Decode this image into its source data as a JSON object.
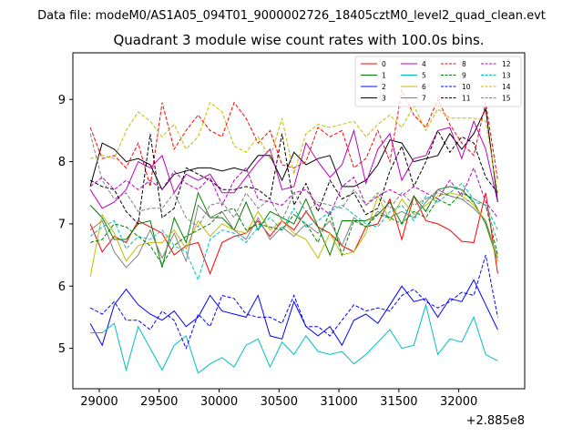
{
  "figure": {
    "suptitle": "Data file: modeM0/AS1A05_094T01_9000002726_18405cztM0_level2_quad_clean.evt"
  },
  "chart_data": {
    "type": "line",
    "title": "Quadrant 3 module wise count rates with 100.0s bins.",
    "xlabel": "",
    "ylabel": "",
    "x_offset_label": "+2.885e8",
    "xlim": [
      28780,
      32550
    ],
    "ylim": [
      4.35,
      9.75
    ],
    "xticks": [
      29000,
      29500,
      30000,
      30500,
      31000,
      31500,
      32000
    ],
    "yticks": [
      5,
      6,
      7,
      8,
      9
    ],
    "grid": false,
    "legend_position": "top-right",
    "x": [
      28925,
      29025,
      29125,
      29225,
      29325,
      29425,
      29525,
      29625,
      29725,
      29825,
      29925,
      30025,
      30125,
      30225,
      30325,
      30425,
      30525,
      30625,
      30725,
      30825,
      30925,
      31025,
      31125,
      31225,
      31325,
      31425,
      31525,
      31625,
      31725,
      31825,
      31925,
      32025,
      32125,
      32225,
      32325
    ],
    "series": [
      {
        "name": "0",
        "color": "#ff0000",
        "dash": "solid",
        "values": [
          7.0,
          6.55,
          6.8,
          6.7,
          7.05,
          6.95,
          6.85,
          6.5,
          6.65,
          6.7,
          6.2,
          6.7,
          6.8,
          6.85,
          7.05,
          6.8,
          7.05,
          6.9,
          7.2,
          6.95,
          6.85,
          6.65,
          6.55,
          6.95,
          7.0,
          7.4,
          6.75,
          7.45,
          7.05,
          7.0,
          6.9,
          6.72,
          6.7,
          7.5,
          6.2
        ]
      },
      {
        "name": "1",
        "color": "#008000",
        "dash": "solid",
        "values": [
          7.3,
          7.1,
          6.75,
          6.75,
          7.0,
          7.05,
          6.3,
          7.1,
          6.7,
          7.5,
          7.1,
          7.1,
          6.9,
          7.35,
          6.9,
          7.2,
          7.1,
          7.0,
          7.4,
          6.95,
          6.5,
          7.05,
          7.05,
          7.05,
          7.15,
          7.35,
          7.0,
          7.45,
          7.2,
          7.55,
          7.6,
          7.55,
          7.35,
          7.0,
          6.4
        ]
      },
      {
        "name": "2",
        "color": "#0000ff",
        "dash": "solid",
        "values": [
          5.4,
          5.05,
          5.7,
          5.95,
          5.7,
          5.55,
          5.45,
          5.6,
          5.35,
          5.5,
          5.85,
          5.6,
          5.55,
          5.5,
          5.85,
          5.2,
          5.15,
          5.75,
          5.35,
          5.2,
          5.35,
          5.05,
          5.45,
          5.55,
          5.4,
          5.7,
          6.0,
          5.75,
          5.8,
          5.5,
          5.8,
          5.75,
          6.1,
          5.7,
          5.3
        ]
      },
      {
        "name": "3",
        "color": "#000000",
        "dash": "solid",
        "values": [
          7.6,
          8.3,
          8.2,
          8.0,
          8.05,
          7.95,
          7.55,
          7.8,
          7.85,
          7.9,
          7.9,
          7.85,
          7.9,
          7.85,
          8.1,
          8.1,
          7.7,
          8.15,
          7.95,
          8.05,
          8.1,
          7.6,
          7.6,
          7.7,
          7.95,
          8.35,
          8.3,
          8.0,
          8.05,
          8.1,
          8.45,
          8.2,
          8.45,
          8.85,
          7.35
        ]
      },
      {
        "name": "4",
        "color": "#bf00bf",
        "dash": "solid",
        "values": [
          7.55,
          7.25,
          7.35,
          7.55,
          8.0,
          7.9,
          8.1,
          7.5,
          7.8,
          7.7,
          7.8,
          7.5,
          7.5,
          7.75,
          8.0,
          8.2,
          7.55,
          7.6,
          8.3,
          8.0,
          7.75,
          7.95,
          8.5,
          7.65,
          8.2,
          8.45,
          7.7,
          8.05,
          8.1,
          8.5,
          8.55,
          8.05,
          8.65,
          8.2,
          7.35
        ]
      },
      {
        "name": "5",
        "color": "#00bfbf",
        "dash": "solid",
        "values": [
          5.25,
          5.25,
          5.4,
          4.65,
          5.35,
          5.0,
          4.65,
          5.05,
          5.2,
          4.6,
          4.75,
          4.85,
          4.7,
          5.05,
          5.15,
          4.7,
          5.1,
          4.9,
          5.2,
          4.95,
          4.9,
          4.95,
          4.75,
          4.9,
          5.1,
          5.3,
          5.0,
          5.05,
          5.7,
          4.9,
          5.15,
          5.1,
          5.5,
          4.9,
          4.8
        ]
      },
      {
        "name": "6",
        "color": "#bfbf00",
        "dash": "solid",
        "values": [
          6.15,
          7.15,
          6.85,
          6.4,
          6.65,
          6.7,
          6.7,
          6.9,
          6.6,
          7.05,
          6.8,
          7.0,
          6.9,
          6.85,
          7.2,
          6.9,
          7.05,
          6.85,
          6.75,
          6.45,
          6.85,
          6.5,
          6.55,
          6.85,
          7.45,
          7.05,
          7.4,
          7.15,
          7.3,
          7.45,
          7.5,
          7.45,
          7.3,
          7.05,
          6.4
        ]
      },
      {
        "name": "7",
        "color": "#808080",
        "dash": "solid",
        "values": [
          6.9,
          7.05,
          6.55,
          6.3,
          6.5,
          6.9,
          6.45,
          6.85,
          6.4,
          7.3,
          7.1,
          7.2,
          6.9,
          6.75,
          7.1,
          6.75,
          6.95,
          6.8,
          7.0,
          6.85,
          7.05,
          6.65,
          7.1,
          6.95,
          7.2,
          7.1,
          7.2,
          7.1,
          7.35,
          7.55,
          7.45,
          7.4,
          7.25,
          7.05,
          6.45
        ]
      },
      {
        "name": "8",
        "color": "#ff0000",
        "dash": "dashed",
        "values": [
          8.55,
          8.05,
          8.1,
          7.9,
          8.3,
          7.6,
          8.95,
          8.2,
          8.5,
          8.75,
          8.5,
          8.4,
          8.95,
          8.7,
          8.3,
          8.5,
          7.95,
          7.9,
          8.0,
          8.55,
          8.4,
          8.5,
          7.9,
          8.05,
          8.5,
          8.0,
          9.15,
          8.75,
          8.55,
          9.0,
          8.6,
          8.3,
          8.1,
          8.95,
          7.7
        ]
      },
      {
        "name": "9",
        "color": "#008000",
        "dash": "dashed",
        "values": [
          6.7,
          6.75,
          7.0,
          6.95,
          6.8,
          6.65,
          6.35,
          6.65,
          6.8,
          6.9,
          7.0,
          7.2,
          7.25,
          6.9,
          7.0,
          6.95,
          6.9,
          7.15,
          7.0,
          6.7,
          7.2,
          6.5,
          7.05,
          6.95,
          7.15,
          7.1,
          7.0,
          7.2,
          7.1,
          7.4,
          7.3,
          7.5,
          7.4,
          7.3,
          6.5
        ]
      },
      {
        "name": "10",
        "color": "#0000ff",
        "dash": "dashed",
        "values": [
          5.65,
          5.55,
          5.75,
          5.45,
          5.45,
          5.3,
          5.6,
          5.45,
          5.0,
          5.55,
          5.35,
          5.85,
          5.8,
          5.55,
          5.5,
          5.5,
          5.4,
          5.85,
          5.35,
          5.35,
          5.2,
          5.45,
          5.7,
          5.6,
          5.65,
          5.6,
          5.85,
          5.95,
          5.75,
          5.65,
          5.75,
          5.9,
          5.85,
          6.5,
          5.5
        ]
      },
      {
        "name": "11",
        "color": "#000000",
        "dash": "dashed",
        "values": [
          7.7,
          7.6,
          7.55,
          7.2,
          7.0,
          8.45,
          7.1,
          7.25,
          7.9,
          7.8,
          7.7,
          7.55,
          7.55,
          7.6,
          7.55,
          7.4,
          8.45,
          7.3,
          7.65,
          7.2,
          7.7,
          7.4,
          7.5,
          7.15,
          7.25,
          7.85,
          8.25,
          7.6,
          8.0,
          8.5,
          8.15,
          8.4,
          8.3,
          7.75,
          7.5
        ]
      },
      {
        "name": "12",
        "color": "#bf00bf",
        "dash": "dashed",
        "values": [
          7.6,
          7.75,
          7.55,
          7.7,
          7.55,
          7.7,
          7.55,
          7.85,
          7.65,
          7.55,
          7.75,
          7.3,
          7.7,
          7.9,
          7.4,
          7.35,
          7.3,
          7.5,
          7.55,
          7.3,
          7.15,
          7.6,
          7.75,
          7.3,
          7.45,
          7.55,
          7.45,
          7.6,
          7.5,
          7.4,
          7.7,
          7.45,
          7.9,
          7.35,
          7.1
        ]
      },
      {
        "name": "13",
        "color": "#00bfbf",
        "dash": "dashed",
        "values": [
          6.8,
          6.95,
          7.05,
          6.6,
          6.8,
          6.75,
          6.9,
          6.65,
          6.55,
          6.1,
          6.75,
          6.9,
          6.85,
          6.7,
          6.95,
          7.1,
          6.9,
          7.25,
          6.95,
          7.05,
          7.2,
          7.3,
          7.15,
          7.0,
          6.95,
          7.2,
          7.3,
          7.05,
          7.45,
          7.35,
          7.5,
          7.65,
          7.4,
          7.3,
          6.9
        ]
      },
      {
        "name": "14",
        "color": "#bfbf00",
        "dash": "dashed",
        "values": [
          8.05,
          8.1,
          8.05,
          8.5,
          8.8,
          8.65,
          8.4,
          8.6,
          8.2,
          8.4,
          8.95,
          8.8,
          8.25,
          8.15,
          8.4,
          8.05,
          8.7,
          7.8,
          8.45,
          8.6,
          8.55,
          8.6,
          8.65,
          8.4,
          8.6,
          8.75,
          8.55,
          8.9,
          8.5,
          8.85,
          8.7,
          8.7,
          8.7,
          8.65,
          7.5
        ]
      },
      {
        "name": "15",
        "color": "#808080",
        "dash": "dashed",
        "values": [
          8.45,
          7.7,
          7.4,
          7.5,
          7.2,
          7.25,
          7.25,
          7.5,
          7.1,
          6.95,
          7.3,
          7.35,
          7.1,
          7.5,
          7.25,
          7.4,
          7.05,
          7.5,
          7.2,
          7.35,
          7.3,
          7.25,
          7.55,
          7.3,
          7.5,
          7.25,
          7.5,
          7.3,
          7.4,
          7.5,
          7.45,
          7.4,
          7.35,
          7.3,
          6.7
        ]
      }
    ]
  }
}
